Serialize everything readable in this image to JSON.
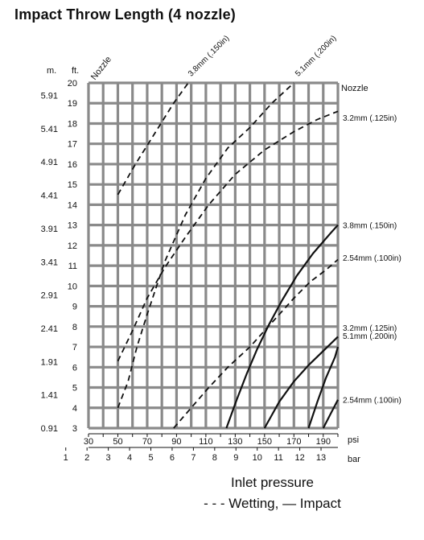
{
  "chart_data": {
    "type": "line",
    "title": "Impact Throw Length (4 nozzle)",
    "y_left_unit": "m.",
    "y_right_unit": "ft.",
    "nozzle_header_left": "Nozzle",
    "nozzle_header_right": "Nozzle",
    "x_unit_psi": "psi",
    "x_unit_bar": "bar",
    "ylim_ft": [
      3,
      20
    ],
    "xlim_psi": [
      30,
      200
    ],
    "ft_ticks": [
      "3",
      "4",
      "5",
      "6",
      "7",
      "8",
      "9",
      "10",
      "11",
      "12",
      "13",
      "14",
      "15",
      "16",
      "17",
      "18",
      "19",
      "20"
    ],
    "m_ticks": [
      {
        "label": "0.91",
        "ft": 3
      },
      {
        "label": "1.41",
        "ft": 4.64
      },
      {
        "label": "1.91",
        "ft": 6.27
      },
      {
        "label": "2.41",
        "ft": 7.91
      },
      {
        "label": "2.91",
        "ft": 9.55
      },
      {
        "label": "3.41",
        "ft": 11.19
      },
      {
        "label": "3.91",
        "ft": 12.83
      },
      {
        "label": "4.41",
        "ft": 14.47
      },
      {
        "label": "4.91",
        "ft": 16.11
      },
      {
        "label": "5.41",
        "ft": 17.75
      },
      {
        "label": "5.91",
        "ft": 19.39
      }
    ],
    "psi_ticks": [
      {
        "label": "30",
        "psi": 30
      },
      {
        "label": "50",
        "psi": 50
      },
      {
        "label": "70",
        "psi": 70
      },
      {
        "label": "90",
        "psi": 90
      },
      {
        "label": "110",
        "psi": 110
      },
      {
        "label": "130",
        "psi": 130
      },
      {
        "label": "150",
        "psi": 150
      },
      {
        "label": "170",
        "psi": 170
      },
      {
        "label": "190",
        "psi": 190
      }
    ],
    "bar_ticks": [
      {
        "label": "1",
        "psi": 14.5
      },
      {
        "label": "2",
        "psi": 29
      },
      {
        "label": "3",
        "psi": 43.5
      },
      {
        "label": "4",
        "psi": 58
      },
      {
        "label": "5",
        "psi": 72.5
      },
      {
        "label": "6",
        "psi": 87
      },
      {
        "label": "7",
        "psi": 101.5
      },
      {
        "label": "8",
        "psi": 116
      },
      {
        "label": "9",
        "psi": 130.5
      },
      {
        "label": "10",
        "psi": 145
      },
      {
        "label": "11",
        "psi": 159.5
      },
      {
        "label": "12",
        "psi": 174
      },
      {
        "label": "13",
        "psi": 188.5
      }
    ],
    "series": [
      {
        "name": "3.8mm (.150in)",
        "style": "dashed",
        "points": [
          [
            50,
            14.5
          ],
          [
            62,
            16
          ],
          [
            75,
            17.5
          ],
          [
            88,
            19
          ],
          [
            98,
            20
          ]
        ]
      },
      {
        "name": "5.1mm (.200in)",
        "style": "dashed",
        "points": [
          [
            50,
            4
          ],
          [
            57,
            5.3
          ],
          [
            63,
            7
          ],
          [
            70,
            8.6
          ],
          [
            82,
            11.2
          ],
          [
            96,
            13.5
          ],
          [
            110,
            15.3
          ],
          [
            125,
            16.8
          ],
          [
            140,
            17.8
          ],
          [
            155,
            19
          ],
          [
            170,
            20
          ]
        ]
      },
      {
        "name": "3.2mm (.125in)",
        "style": "dashed",
        "points": [
          [
            50,
            6.3
          ],
          [
            60,
            7.8
          ],
          [
            70,
            9.4
          ],
          [
            82,
            10.9
          ],
          [
            96,
            12.4
          ],
          [
            112,
            14
          ],
          [
            130,
            15.5
          ],
          [
            150,
            16.7
          ],
          [
            170,
            17.6
          ],
          [
            186,
            18.2
          ],
          [
            200,
            18.6
          ]
        ]
      },
      {
        "name": "2.54mm (.100in)",
        "style": "dashed",
        "points": [
          [
            88,
            3
          ],
          [
            100,
            4
          ],
          [
            112,
            5
          ],
          [
            125,
            6
          ],
          [
            140,
            7
          ],
          [
            150,
            7.8
          ],
          [
            160,
            8.6
          ],
          [
            170,
            9.4
          ],
          [
            181,
            10.2
          ],
          [
            192,
            10.8
          ],
          [
            200,
            11.3
          ]
        ]
      },
      {
        "name": "3.8mm (.150in)",
        "style": "solid",
        "points": [
          [
            124,
            3
          ],
          [
            131,
            4.4
          ],
          [
            138,
            5.7
          ],
          [
            145,
            6.9
          ],
          [
            153,
            8.1
          ],
          [
            162,
            9.3
          ],
          [
            172,
            10.5
          ],
          [
            183,
            11.6
          ],
          [
            195,
            12.6
          ],
          [
            200,
            13
          ]
        ]
      },
      {
        "name": "3.2mm (.125in)",
        "style": "solid",
        "points": [
          [
            150,
            3
          ],
          [
            160,
            4.3
          ],
          [
            170,
            5.3
          ],
          [
            180,
            6.1
          ],
          [
            190,
            6.8
          ],
          [
            200,
            7.5
          ]
        ]
      },
      {
        "name": "5.1mm (.200in)",
        "style": "solid",
        "points": [
          [
            180,
            3
          ],
          [
            186,
            4.3
          ],
          [
            192,
            5.5
          ],
          [
            198,
            6.5
          ],
          [
            200,
            7
          ]
        ]
      },
      {
        "name": "2.54mm (.100in)",
        "style": "solid",
        "points": [
          [
            190,
            3
          ],
          [
            195,
            3.7
          ],
          [
            200,
            4.4
          ]
        ]
      }
    ],
    "top_labels": [
      {
        "text": "3.8mm (.150in)",
        "psi": 100,
        "ft": 20.3
      },
      {
        "text": "5.1mm (.200in)",
        "psi": 173,
        "ft": 20.3
      }
    ],
    "right_labels": [
      {
        "text": "3.2mm  (.125in)",
        "ft": 18.3
      },
      {
        "text": "3.8mm  (.150in)",
        "ft": 13
      },
      {
        "text": "2.54mm  (.100in)",
        "ft": 11.4
      },
      {
        "text": "3.2mm  (.125in)",
        "ft": 7.95
      },
      {
        "text": "5.1mm  (.200in)",
        "ft": 7.55
      },
      {
        "text": "2.54mm  (.100in)",
        "ft": 4.4
      }
    ],
    "grid": true
  },
  "caption": {
    "line1": "Inlet pressure",
    "line2": "- - - Wetting, — Impact"
  }
}
